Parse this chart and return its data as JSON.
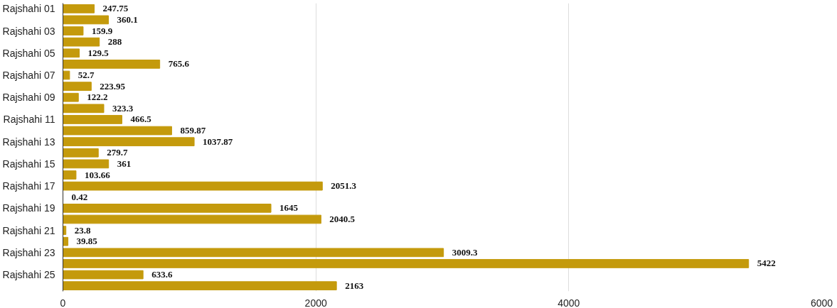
{
  "chart_data": {
    "type": "bar",
    "orientation": "horizontal",
    "categories": [
      "Rajshahi 01",
      null,
      "Rajshahi 03",
      null,
      "Rajshahi 05",
      null,
      "Rajshahi 07",
      null,
      "Rajshahi 09",
      null,
      "Rajshahi 11",
      null,
      "Rajshahi 13",
      null,
      "Rajshahi 15",
      null,
      "Rajshahi 17",
      null,
      "Rajshahi 19",
      null,
      "Rajshahi 21",
      null,
      "Rajshahi 23",
      null,
      "Rajshahi 25",
      null
    ],
    "values": [
      247.75,
      360.1,
      159.9,
      288,
      129.5,
      765.6,
      52.7,
      223.95,
      122.2,
      323.3,
      466.5,
      859.87,
      1037.87,
      279.7,
      361,
      103.66,
      2051.3,
      0.42,
      1645,
      2040.5,
      23.8,
      39.85,
      3009.3,
      5422,
      633.6,
      2163
    ],
    "color": "#c49a0c",
    "xlim": [
      0,
      6000
    ],
    "xticks": [
      0,
      2000,
      4000,
      6000
    ],
    "grid": "x",
    "data_labels": true
  }
}
